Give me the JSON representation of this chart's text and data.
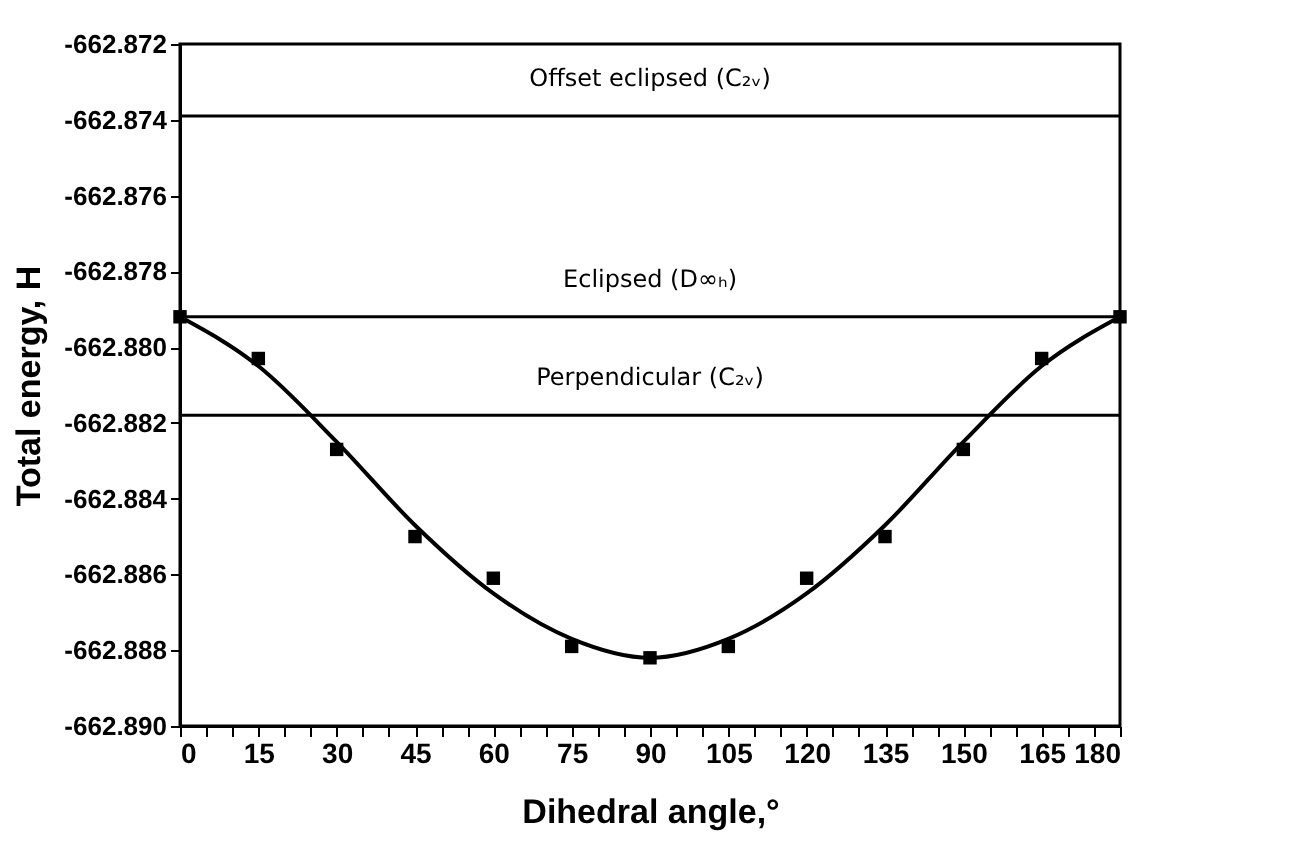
{
  "chart_data": {
    "type": "scatter",
    "xlabel": "Dihedral angle,°",
    "ylabel": "Total energy, H",
    "x": [
      0,
      15,
      30,
      45,
      60,
      75,
      90,
      105,
      120,
      135,
      150,
      165,
      180
    ],
    "series": [
      {
        "type": "scatter",
        "color": "#000000",
        "marker": "square",
        "values": [
          -662.8792,
          -662.8803,
          -662.8827,
          -662.885,
          -662.8861,
          -662.8879,
          -662.8882,
          -662.8879,
          -662.8861,
          -662.885,
          -662.8827,
          -662.8803,
          -662.8792
        ]
      },
      {
        "type": "line",
        "color": "#000000",
        "marker": "none",
        "line_style": "solid",
        "x": [
          0,
          15,
          30,
          45,
          60,
          75,
          90,
          105,
          120,
          135,
          150,
          165,
          180
        ],
        "values": [
          -662.8792,
          -662.8805,
          -662.8825,
          -662.8847,
          -662.8865,
          -662.8877,
          -662.8882,
          -662.8877,
          -662.8865,
          -662.8847,
          -662.8825,
          -662.8805,
          -662.8792
        ]
      }
    ],
    "ref_lines": [
      {
        "axis": "y",
        "value": -662.8739,
        "label": "Offset eclipsed (C₂ᵥ)",
        "color": "#000000"
      },
      {
        "axis": "y",
        "value": -662.8792,
        "label": "Eclipsed (D∞ₕ)",
        "color": "#000000"
      },
      {
        "axis": "y",
        "value": -662.8818,
        "label": "Perpendicular (C₂ᵥ)",
        "color": "#000000"
      }
    ],
    "xlim": [
      0,
      180
    ],
    "xticks": [
      0,
      {
        "value": 5,
        "label": null
      },
      {
        "value": 10,
        "label": null
      },
      15,
      {
        "value": 20,
        "label": null
      },
      {
        "value": 25,
        "label": null
      },
      30,
      {
        "value": 35,
        "label": null
      },
      {
        "value": 40,
        "label": null
      },
      45,
      {
        "value": 50,
        "label": null
      },
      {
        "value": 55,
        "label": null
      },
      60,
      {
        "value": 65,
        "label": null
      },
      {
        "value": 70,
        "label": null
      },
      75,
      {
        "value": 80,
        "label": null
      },
      {
        "value": 85,
        "label": null
      },
      90,
      {
        "value": 95,
        "label": null
      },
      {
        "value": 100,
        "label": null
      },
      105,
      {
        "value": 110,
        "label": null
      },
      {
        "value": 115,
        "label": null
      },
      120,
      {
        "value": 125,
        "label": null
      },
      {
        "value": 130,
        "label": null
      },
      135,
      {
        "value": 140,
        "label": null
      },
      {
        "value": 145,
        "label": null
      },
      150,
      {
        "value": 155,
        "label": null
      },
      {
        "value": 160,
        "label": null
      },
      165,
      {
        "value": 170,
        "label": null
      },
      {
        "value": 175,
        "label": null
      },
      180
    ],
    "ylim": [
      -662.89,
      -662.872
    ],
    "yticks": [
      -662.872,
      -662.874,
      -662.876,
      -662.878,
      {
        "value": -662.88,
        "label": "-662.880"
      },
      -662.882,
      -662.884,
      -662.886,
      -662.888,
      {
        "value": -662.89,
        "label": "-662.890"
      }
    ],
    "grid": false
  }
}
